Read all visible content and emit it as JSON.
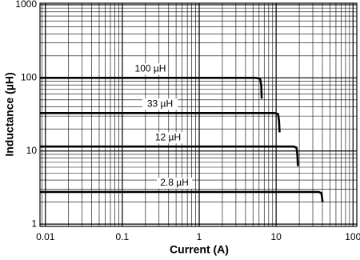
{
  "chart_data": {
    "type": "line",
    "x_label": "Current (A)",
    "y_label": "Inductance (µH)",
    "log_x": true,
    "log_y": true,
    "grid": true,
    "minor_grid": true,
    "xlim": [
      0.0085,
      112
    ],
    "ylim": [
      0.93,
      1050
    ],
    "xticks": [
      0.01,
      0.1,
      1,
      10,
      100
    ],
    "yticks": [
      1,
      10,
      100,
      1000
    ],
    "series": [
      {
        "name": "100 µH",
        "color": "#000000",
        "x": [
          0.0085,
          5.5,
          6.2,
          6.4,
          6.5
        ],
        "values": [
          100,
          100,
          97,
          80,
          52
        ]
      },
      {
        "name": "33 µH",
        "color": "#000000",
        "x": [
          0.0085,
          9.6,
          10.6,
          10.9,
          11.1
        ],
        "values": [
          33,
          33,
          32,
          26,
          18
        ]
      },
      {
        "name": "12 µH",
        "color": "#000000",
        "x": [
          0.0085,
          17,
          18.4,
          18.9,
          19.2
        ],
        "values": [
          11.5,
          11.5,
          11.1,
          9,
          6.2
        ]
      },
      {
        "name": "2.8 µH",
        "color": "#000000",
        "x": [
          0.0085,
          36,
          38.8,
          39.6,
          40.2
        ],
        "values": [
          2.75,
          2.75,
          2.65,
          2.3,
          2.0
        ]
      }
    ]
  }
}
